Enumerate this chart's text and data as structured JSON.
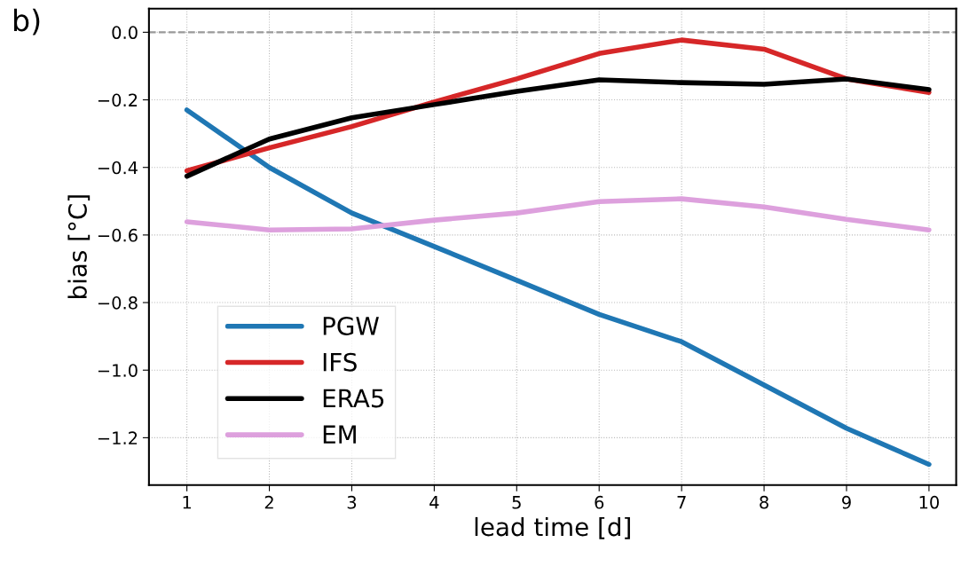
{
  "chart_data": {
    "type": "line",
    "xlabel": "lead time [d]",
    "ylabel": "bias [°C]",
    "annotations": [
      "b)"
    ],
    "x": [
      1,
      2,
      3,
      4,
      5,
      6,
      7,
      8,
      9,
      10
    ],
    "xlim": [
      0.54,
      10.33
    ],
    "xticks": [
      1,
      2,
      3,
      4,
      5,
      6,
      7,
      8,
      9,
      10
    ],
    "ylim": [
      -1.34,
      0.07
    ],
    "yticks": [
      {
        "value": -1.2,
        "label": "−1.2"
      },
      {
        "value": -1.0,
        "label": "−1.0"
      },
      {
        "value": -0.8,
        "label": "−0.8"
      },
      {
        "value": -0.6,
        "label": "−0.6"
      },
      {
        "value": -0.4,
        "label": "−0.4"
      },
      {
        "value": -0.2,
        "label": "−0.2"
      },
      {
        "value": 0,
        "label": "0.0"
      }
    ],
    "grid": true,
    "legend": "bottom left",
    "line_style": "solid",
    "marker": "none",
    "ref_lines": [
      {
        "axis": "y",
        "value": 0,
        "color": "#999999",
        "line_style": "dashed"
      }
    ],
    "series": [
      {
        "name": "PGW",
        "color": "#1f77b4",
        "values": [
          -0.23,
          -0.4,
          -0.535,
          -0.634,
          -0.734,
          -0.835,
          -0.916,
          -1.044,
          -1.172,
          -1.279
        ]
      },
      {
        "name": "IFS",
        "color": "#d62728",
        "values": [
          -0.41,
          -0.342,
          -0.279,
          -0.206,
          -0.138,
          -0.063,
          -0.023,
          -0.05,
          -0.138,
          -0.178
        ]
      },
      {
        "name": "ERA5",
        "color": "#000000",
        "values": [
          -0.426,
          -0.316,
          -0.253,
          -0.214,
          -0.175,
          -0.141,
          -0.149,
          -0.154,
          -0.138,
          -0.17
        ]
      },
      {
        "name": "EM",
        "color": "#dda0dd",
        "values": [
          -0.561,
          -0.585,
          -0.582,
          -0.556,
          -0.535,
          -0.501,
          -0.493,
          -0.517,
          -0.554,
          -0.585
        ]
      }
    ]
  }
}
